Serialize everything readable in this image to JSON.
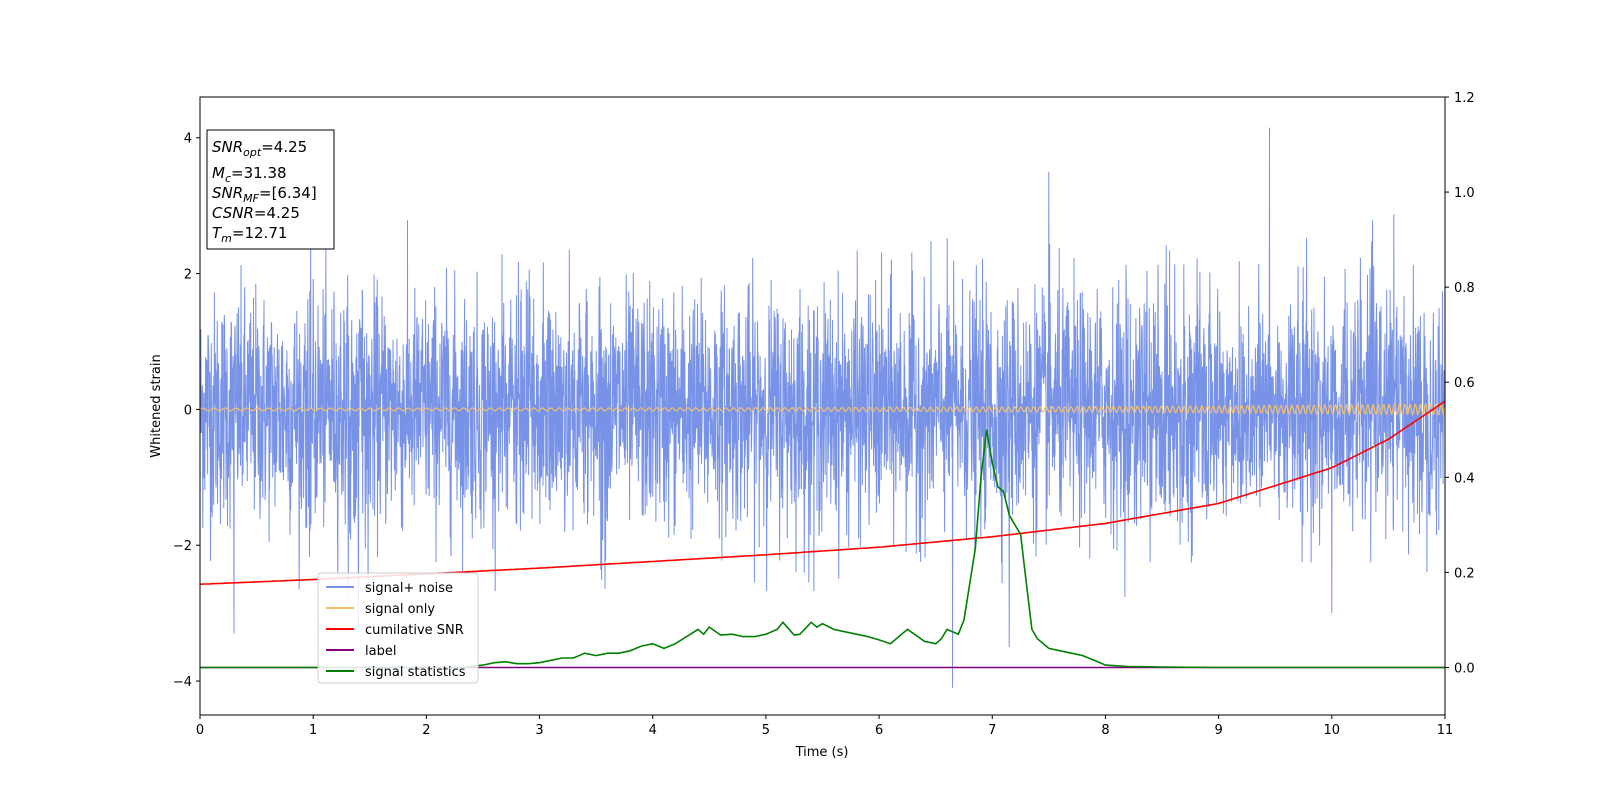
{
  "chart_data": {
    "type": "line",
    "xlabel": "Time (s)",
    "ylabel": "Whitened strain",
    "xlim": [
      0,
      11
    ],
    "ylim_left": [
      -4.5,
      4.6
    ],
    "ylim_right": [
      -0.1,
      1.2
    ],
    "x_ticks": [
      "0",
      "1",
      "2",
      "3",
      "4",
      "5",
      "6",
      "7",
      "8",
      "9",
      "10",
      "11"
    ],
    "y_left_ticks": [
      "−4",
      "−2",
      "0",
      "2",
      "4"
    ],
    "y_right_ticks": [
      "0.0",
      "0.2",
      "0.4",
      "0.6",
      "0.8",
      "1.0",
      "1.2"
    ],
    "grid": false,
    "legend_position": "lower-left",
    "annotation": {
      "snr_opt": "4.25",
      "mc": "31.38",
      "snr_mf": "[6.34]",
      "csnr": "4.25",
      "tm": "12.71"
    },
    "series": [
      {
        "name": "signal+ noise",
        "axis": "left",
        "color": "#7792e6",
        "kind": "noise",
        "approx_std": 0.85,
        "approx_range": [
          -2.8,
          3.0
        ],
        "notable_spikes": [
          [
            0.3,
            -3.3
          ],
          [
            1.4,
            -3.2
          ],
          [
            6.65,
            -4.1
          ],
          [
            7.15,
            3.2
          ],
          [
            7.15,
            -3.5
          ],
          [
            7.5,
            3.5
          ],
          [
            9.45,
            4.15
          ],
          [
            10.0,
            -3.0
          ]
        ]
      },
      {
        "name": "signal only",
        "axis": "left",
        "color": "#f5bf6e",
        "kind": "chirp",
        "amplitude_start": 0.02,
        "amplitude_end": 0.08
      },
      {
        "name": "cumilative SNR",
        "axis": "right",
        "color": "#ff0000",
        "x": [
          0,
          1,
          2,
          3,
          4,
          5,
          6,
          7,
          8,
          9,
          10,
          10.5,
          11
        ],
        "y": [
          0.175,
          0.185,
          0.197,
          0.209,
          0.223,
          0.237,
          0.253,
          0.275,
          0.303,
          0.345,
          0.42,
          0.48,
          0.56
        ]
      },
      {
        "name": "label",
        "axis": "right",
        "color": "#800080",
        "x": [
          0,
          11
        ],
        "y": [
          0.0,
          0.0
        ]
      },
      {
        "name": "signal statistics",
        "axis": "right",
        "color": "#008000",
        "x": [
          0,
          0.5,
          1,
          1.5,
          2,
          2.3,
          2.5,
          2.6,
          2.7,
          2.8,
          2.9,
          3.0,
          3.1,
          3.2,
          3.3,
          3.4,
          3.5,
          3.6,
          3.7,
          3.8,
          3.9,
          4.0,
          4.1,
          4.2,
          4.3,
          4.4,
          4.45,
          4.5,
          4.6,
          4.7,
          4.8,
          4.9,
          5.0,
          5.1,
          5.15,
          5.25,
          5.3,
          5.4,
          5.45,
          5.5,
          5.6,
          5.7,
          5.8,
          5.9,
          6.0,
          6.1,
          6.2,
          6.25,
          6.3,
          6.4,
          6.5,
          6.55,
          6.6,
          6.7,
          6.75,
          6.85,
          6.9,
          6.95,
          7.0,
          7.05,
          7.1,
          7.15,
          7.2,
          7.25,
          7.3,
          7.35,
          7.4,
          7.5,
          7.6,
          7.7,
          7.8,
          7.9,
          8.0,
          8.2,
          8.5,
          9.0,
          9.5,
          10,
          11
        ],
        "y": [
          0.0,
          0.0,
          0.0,
          0.0,
          0.0,
          0.0,
          0.005,
          0.01,
          0.012,
          0.008,
          0.008,
          0.01,
          0.015,
          0.02,
          0.02,
          0.03,
          0.025,
          0.03,
          0.03,
          0.035,
          0.045,
          0.05,
          0.04,
          0.05,
          0.065,
          0.08,
          0.07,
          0.085,
          0.068,
          0.07,
          0.065,
          0.065,
          0.07,
          0.08,
          0.095,
          0.068,
          0.07,
          0.095,
          0.085,
          0.092,
          0.08,
          0.075,
          0.07,
          0.065,
          0.058,
          0.05,
          0.07,
          0.08,
          0.072,
          0.055,
          0.05,
          0.06,
          0.08,
          0.07,
          0.1,
          0.25,
          0.4,
          0.5,
          0.43,
          0.38,
          0.37,
          0.32,
          0.3,
          0.28,
          0.18,
          0.08,
          0.06,
          0.04,
          0.035,
          0.03,
          0.025,
          0.015,
          0.005,
          0.002,
          0.001,
          0.0,
          0.0,
          0.0,
          0.0
        ]
      }
    ]
  }
}
